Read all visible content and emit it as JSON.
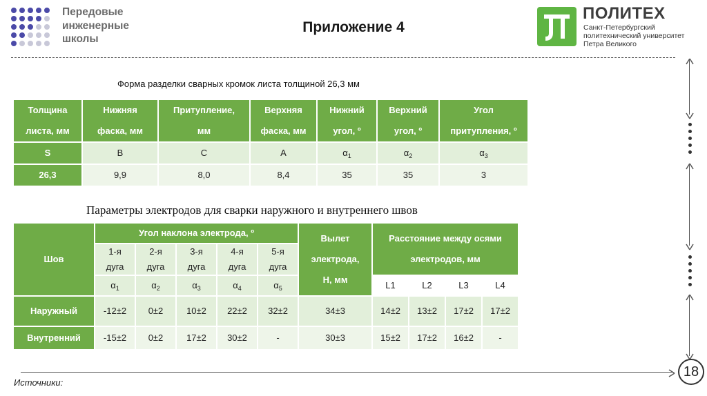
{
  "header": {
    "school_lines": [
      "Передовые",
      "инженерные",
      "школы"
    ],
    "title": "Приложение 4",
    "logo_name": "ПОЛИТЕХ",
    "logo_sub": [
      "Санкт-Петербургский",
      "политехнический университет",
      "Петра Великого"
    ]
  },
  "colors": {
    "accent_green": "#6fac47",
    "light_green": "#e2efda",
    "logo_green": "#5fb543",
    "dots_blue": "#4b4aa8",
    "dots_gray": "#c8c8d8"
  },
  "table1": {
    "caption": "Форма разделки сварных кромок листа толщиной 26,3 мм",
    "headers": [
      [
        "Толщина",
        "листа, мм"
      ],
      [
        "Нижняя",
        "фаска, мм"
      ],
      [
        "Притупление,",
        "мм"
      ],
      [
        "Верхняя",
        "фаска, мм"
      ],
      [
        "Нижний",
        "угол, º"
      ],
      [
        "Верхний",
        "угол, º"
      ],
      [
        "Угол",
        "притупления, º"
      ]
    ],
    "symbol_row": {
      "first": "S",
      "b": "B",
      "c": "C",
      "a": "A",
      "alpha": "α",
      "subs": [
        "1",
        "2",
        "3"
      ]
    },
    "value_row": [
      "26,3",
      "9,9",
      "8,0",
      "8,4",
      "35",
      "35",
      "3"
    ]
  },
  "table2": {
    "caption": "Параметры электродов для сварки наружного и внутреннего швов",
    "seam_header": "Шов",
    "angle_header": "Угол наклона электрода, º",
    "arcs": [
      [
        "1-я",
        "дуга"
      ],
      [
        "2-я",
        "дуга"
      ],
      [
        "3-я",
        "дуга"
      ],
      [
        "4-я",
        "дуга"
      ],
      [
        "5-я",
        "дуга"
      ]
    ],
    "alpha": "α",
    "alpha_subs": [
      "1",
      "2",
      "3",
      "4",
      "5"
    ],
    "extension_header": [
      "Вылет",
      "электрода,",
      "H, мм"
    ],
    "distance_header": [
      "Расстояние между осями",
      "электродов, мм"
    ],
    "distance_cols": [
      "L1",
      "L2",
      "L3",
      "L4"
    ],
    "rows": [
      {
        "name": "Наружный",
        "angles": [
          "-12±2",
          "0±2",
          "10±2",
          "22±2",
          "32±2"
        ],
        "ext": "34±3",
        "dist": [
          "14±2",
          "13±2",
          "17±2",
          "17±2"
        ]
      },
      {
        "name": "Внутренний",
        "angles": [
          "-15±2",
          "0±2",
          "17±2",
          "30±2",
          "-"
        ],
        "ext": "30±3",
        "dist": [
          "15±2",
          "17±2",
          "16±2",
          "-"
        ]
      }
    ]
  },
  "footer": {
    "sources_label": "Источники:",
    "page_number": "18"
  }
}
